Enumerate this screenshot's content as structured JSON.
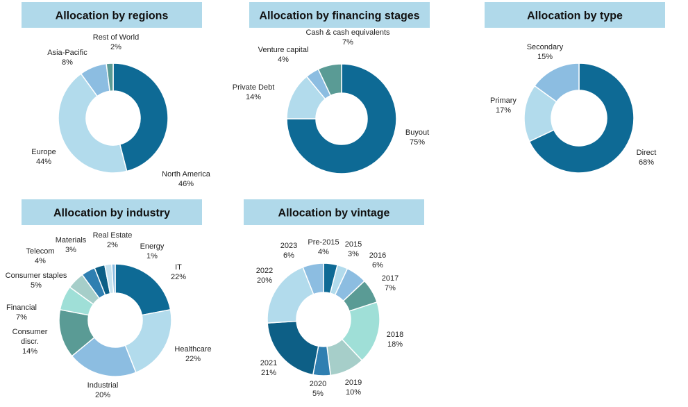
{
  "chart_data": [
    {
      "type": "pie",
      "title": "Allocation by regions",
      "slices": [
        {
          "label": "North America",
          "pct_label": "46%",
          "value": 46,
          "color": "#0e6a95"
        },
        {
          "label": "Europe",
          "pct_label": "44%",
          "value": 44,
          "color": "#b2dbec"
        },
        {
          "label": "Asia-Pacific",
          "pct_label": "8%",
          "value": 8,
          "color": "#8cbde1"
        },
        {
          "label": "Rest of World",
          "pct_label": "2%",
          "value": 2,
          "color": "#5a9b95"
        }
      ]
    },
    {
      "type": "pie",
      "title": "Allocation by financing stages",
      "slices": [
        {
          "label": "Buyout",
          "pct_label": "75%",
          "value": 75,
          "color": "#0e6a95"
        },
        {
          "label": "Private Debt",
          "pct_label": "14%",
          "value": 14,
          "color": "#b2dbec"
        },
        {
          "label": "Venture capital",
          "pct_label": "4%",
          "value": 4,
          "color": "#8cbde1"
        },
        {
          "label": "Cash & cash equivalents",
          "pct_label": "7%",
          "value": 7,
          "color": "#5a9b95"
        }
      ]
    },
    {
      "type": "pie",
      "title": "Allocation by type",
      "slices": [
        {
          "label": "Direct",
          "pct_label": "68%",
          "value": 68,
          "color": "#0e6a95"
        },
        {
          "label": "Primary",
          "pct_label": "17%",
          "value": 17,
          "color": "#b2dbec"
        },
        {
          "label": "Secondary",
          "pct_label": "15%",
          "value": 15,
          "color": "#8cbde1"
        }
      ]
    },
    {
      "type": "pie",
      "title": "Allocation by industry",
      "slices": [
        {
          "label": "IT",
          "pct_label": "22%",
          "value": 22,
          "color": "#0e6a95"
        },
        {
          "label": "Healthcare",
          "pct_label": "22%",
          "value": 22,
          "color": "#b2dbec"
        },
        {
          "label": "Industrial",
          "pct_label": "20%",
          "value": 20,
          "color": "#8cbde1"
        },
        {
          "label": "Consumer discr.",
          "pct_label": "14%",
          "value": 14,
          "color": "#5a9b95"
        },
        {
          "label": "Financial",
          "pct_label": "7%",
          "value": 7,
          "color": "#9fdfd7"
        },
        {
          "label": "Consumer staples",
          "pct_label": "5%",
          "value": 5,
          "color": "#a6cec9"
        },
        {
          "label": "Telecom",
          "pct_label": "4%",
          "value": 4,
          "color": "#2f7fb1"
        },
        {
          "label": "Materials",
          "pct_label": "3%",
          "value": 3,
          "color": "#0d5f86"
        },
        {
          "label": "Real Estate",
          "pct_label": "2%",
          "value": 2,
          "color": "#c6e2ef"
        },
        {
          "label": "Energy",
          "pct_label": "1%",
          "value": 1,
          "color": "#8cbde1"
        }
      ]
    },
    {
      "type": "pie",
      "title": "Allocation by vintage",
      "slices": [
        {
          "label": "Pre-2015",
          "pct_label": "4%",
          "value": 4,
          "color": "#0e6a95"
        },
        {
          "label": "2015",
          "pct_label": "3%",
          "value": 3,
          "color": "#b2dbec"
        },
        {
          "label": "2016",
          "pct_label": "6%",
          "value": 6,
          "color": "#8cbde1"
        },
        {
          "label": "2017",
          "pct_label": "7%",
          "value": 7,
          "color": "#5a9b95"
        },
        {
          "label": "2018",
          "pct_label": "18%",
          "value": 18,
          "color": "#9fdfd7"
        },
        {
          "label": "2019",
          "pct_label": "10%",
          "value": 10,
          "color": "#a6cec9"
        },
        {
          "label": "2020",
          "pct_label": "5%",
          "value": 5,
          "color": "#2f7fb1"
        },
        {
          "label": "2021",
          "pct_label": "21%",
          "value": 21,
          "color": "#0d5f86"
        },
        {
          "label": "2022",
          "pct_label": "20%",
          "value": 20,
          "color": "#b2dbec"
        },
        {
          "label": "2023",
          "pct_label": "6%",
          "value": 6,
          "color": "#8cbde1"
        }
      ]
    }
  ]
}
